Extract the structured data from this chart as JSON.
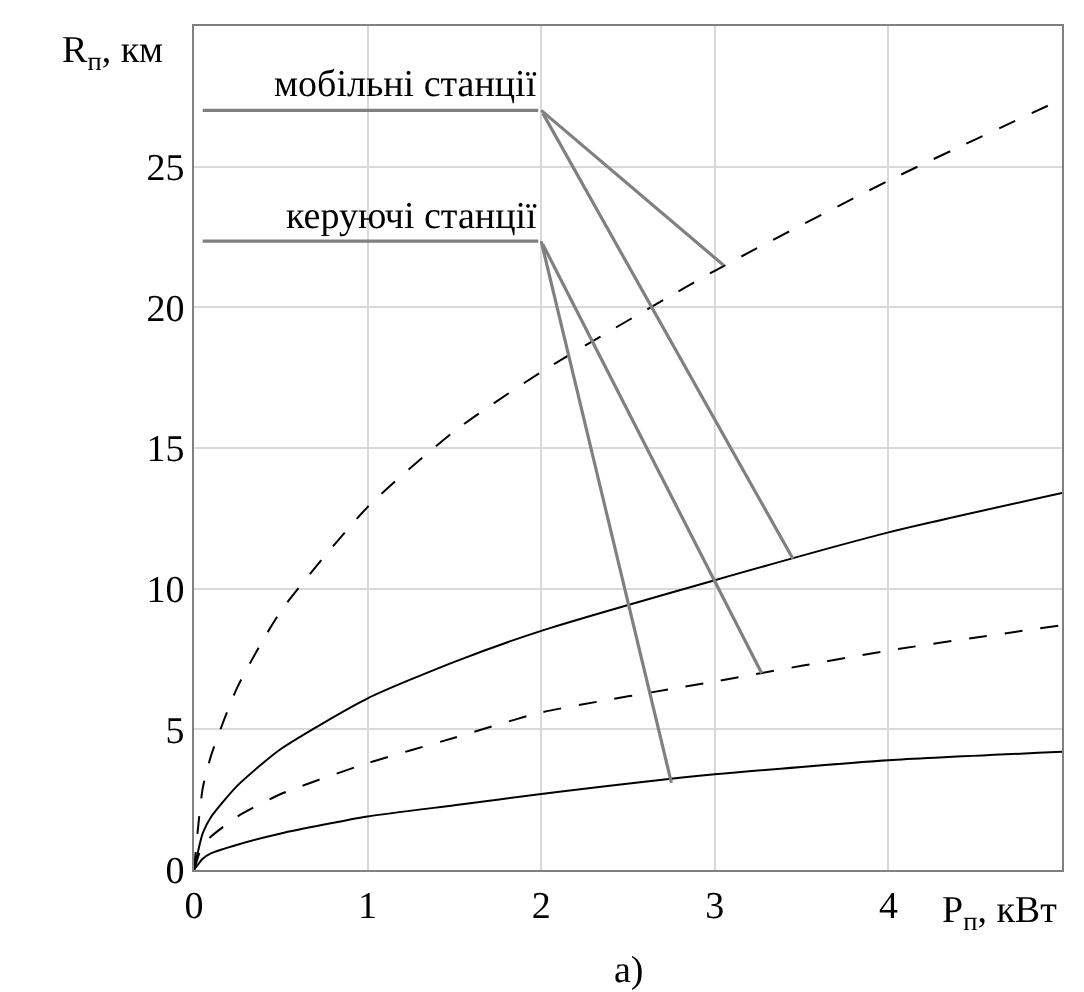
{
  "chart_data": {
    "type": "line",
    "xlabel": "P$_{п}$, кВт",
    "ylabel": "R$_{п}$, км",
    "annotations": [
      "а)",
      {
        "text": "мобільні станції",
        "x": 3.05,
        "y": 21.5
      },
      {
        "text": "керуючі станції",
        "x": 2.75,
        "y": 3.1
      }
    ],
    "xlim": [
      0,
      5
    ],
    "xticks": [
      0,
      1,
      2,
      3,
      4
    ],
    "ylim": [
      0,
      30
    ],
    "yticks": [
      0,
      5,
      10,
      15,
      20,
      25
    ],
    "grid": true,
    "legend": false,
    "marker": "none",
    "x": [
      0,
      0.05,
      0.1,
      0.25,
      0.5,
      1,
      1.5,
      2,
      3,
      4,
      5
    ],
    "series": [
      {
        "color": "#000000",
        "line_style": "dashed",
        "values": [
          0,
          2.9,
          4.1,
          6.5,
          9.2,
          12.9,
          15.6,
          17.7,
          21.3,
          24.5,
          27.4
        ]
      },
      {
        "color": "#000000",
        "line_style": "solid",
        "values": [
          0,
          1.3,
          1.9,
          3.0,
          4.3,
          6.1,
          7.4,
          8.5,
          10.3,
          12.0,
          13.4
        ]
      },
      {
        "color": "#000000",
        "line_style": "dashed",
        "values": [
          0,
          0.9,
          1.2,
          1.9,
          2.7,
          3.8,
          4.7,
          5.6,
          6.7,
          7.8,
          8.7
        ]
      },
      {
        "color": "#000000",
        "line_style": "solid",
        "values": [
          0,
          0.4,
          0.6,
          0.9,
          1.3,
          1.9,
          2.3,
          2.7,
          3.4,
          3.9,
          4.2
        ]
      }
    ]
  }
}
